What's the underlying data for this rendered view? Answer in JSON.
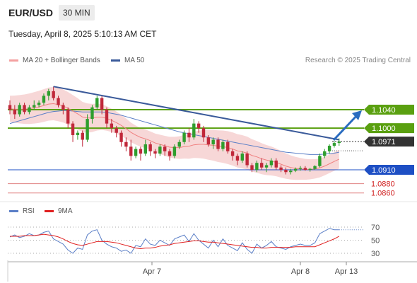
{
  "header": {
    "pair": "EUR/USD",
    "timeframe": "30 MIN"
  },
  "datetime": "Tuesday, April 8, 2025 5:10:13 AM CET",
  "legend": {
    "bollinger": "MA 20 + Bollinger Bands",
    "ma50": "MA 50",
    "research": "Research © 2025 Trading Central"
  },
  "rsi_legend": {
    "rsi": "RSI",
    "ma9": "9MA"
  },
  "colors": {
    "bull": "#2e9e2e",
    "bear": "#c0283a",
    "bands": "#f4c9c9",
    "ma20": "#f08080",
    "ma50": "#5b7fc7",
    "resistance": "#5aa010",
    "support": "#1e4fc4",
    "lower_levels": "#e08080",
    "trend": "#3a5a9a",
    "arrow": "#2a6cc0"
  },
  "chart_data": [
    {
      "type": "candlestick",
      "levels": [
        {
          "value": 1.104,
          "label": "1.1040",
          "kind": "resistance"
        },
        {
          "value": 1.1,
          "label": "1.1000",
          "kind": "resistance"
        },
        {
          "value": 1.0971,
          "label": "1.0971",
          "kind": "current"
        },
        {
          "value": 1.091,
          "label": "1.0910",
          "kind": "support"
        },
        {
          "value": 1.088,
          "label": "1.0880",
          "kind": "lower"
        },
        {
          "value": 1.086,
          "label": "1.0860",
          "kind": "lower"
        }
      ],
      "x_ticks": [
        "Apr 7",
        "Apr 8",
        "Apr 13"
      ],
      "ohlc": [
        [
          1.105,
          1.106,
          1.103,
          1.104
        ],
        [
          1.104,
          1.105,
          1.102,
          1.103
        ],
        [
          1.103,
          1.1055,
          1.1025,
          1.105
        ],
        [
          1.105,
          1.1055,
          1.103,
          1.1035
        ],
        [
          1.1035,
          1.105,
          1.103,
          1.1045
        ],
        [
          1.1045,
          1.106,
          1.104,
          1.105
        ],
        [
          1.105,
          1.106,
          1.1045,
          1.1055
        ],
        [
          1.1055,
          1.1075,
          1.105,
          1.107
        ],
        [
          1.107,
          1.1085,
          1.106,
          1.108
        ],
        [
          1.108,
          1.109,
          1.106,
          1.1065
        ],
        [
          1.1065,
          1.107,
          1.1045,
          1.105
        ],
        [
          1.105,
          1.1055,
          1.103,
          1.104
        ],
        [
          1.104,
          1.1045,
          1.1,
          1.101
        ],
        [
          1.101,
          1.1015,
          1.097,
          1.0985
        ],
        [
          1.0985,
          1.0995,
          1.0975,
          1.099
        ],
        [
          1.099,
          1.0995,
          1.096,
          1.0975
        ],
        [
          1.0975,
          1.103,
          1.097,
          1.102
        ],
        [
          1.102,
          1.105,
          1.101,
          1.1045
        ],
        [
          1.1045,
          1.107,
          1.104,
          1.1065
        ],
        [
          1.1065,
          1.107,
          1.103,
          1.104
        ],
        [
          1.104,
          1.1045,
          1.1,
          1.101
        ],
        [
          1.101,
          1.102,
          1.099,
          1.1
        ],
        [
          1.1,
          1.1005,
          1.098,
          1.099
        ],
        [
          1.099,
          1.0995,
          1.096,
          1.097
        ],
        [
          1.097,
          1.098,
          1.095,
          1.096
        ],
        [
          1.096,
          1.0975,
          1.093,
          1.094
        ],
        [
          1.094,
          1.096,
          1.0935,
          1.0955
        ],
        [
          1.0955,
          1.096,
          1.093,
          1.0945
        ],
        [
          1.0945,
          1.0975,
          1.094,
          1.0965
        ],
        [
          1.0965,
          1.097,
          1.094,
          1.095
        ],
        [
          1.095,
          1.0955,
          1.0935,
          1.0945
        ],
        [
          1.0945,
          1.0965,
          1.094,
          1.096
        ],
        [
          1.096,
          1.0965,
          1.094,
          1.095
        ],
        [
          1.095,
          1.0955,
          1.093,
          1.094
        ],
        [
          1.094,
          1.0965,
          1.0935,
          1.096
        ],
        [
          1.096,
          1.0975,
          1.0955,
          1.097
        ],
        [
          1.097,
          1.0995,
          1.0965,
          1.099
        ],
        [
          1.099,
          1.1,
          1.097,
          1.098
        ],
        [
          1.098,
          1.102,
          1.0975,
          1.101
        ],
        [
          1.101,
          1.1015,
          1.099,
          1.1
        ],
        [
          1.1,
          1.1005,
          1.097,
          1.098
        ],
        [
          1.098,
          1.0985,
          1.096,
          1.0965
        ],
        [
          1.0965,
          1.098,
          1.0955,
          1.0975
        ],
        [
          1.0975,
          1.098,
          1.095,
          1.0955
        ],
        [
          1.0955,
          1.0975,
          1.095,
          1.097
        ],
        [
          1.097,
          1.0975,
          1.0945,
          1.095
        ],
        [
          1.095,
          1.0955,
          1.093,
          1.094
        ],
        [
          1.094,
          1.0945,
          1.092,
          1.093
        ],
        [
          1.093,
          1.095,
          1.0925,
          1.0945
        ],
        [
          1.0945,
          1.095,
          1.0915,
          1.092
        ],
        [
          1.092,
          1.0925,
          1.0905,
          1.091
        ],
        [
          1.091,
          1.093,
          1.0905,
          1.0925
        ],
        [
          1.0925,
          1.0935,
          1.091,
          1.0915
        ],
        [
          1.0915,
          1.0925,
          1.0905,
          1.092
        ],
        [
          1.092,
          1.0935,
          1.0915,
          1.093
        ],
        [
          1.093,
          1.0935,
          1.091,
          1.0915
        ],
        [
          1.0915,
          1.092,
          1.0905,
          1.091
        ],
        [
          1.091,
          1.0915,
          1.09,
          1.0905
        ],
        [
          1.0905,
          1.0912,
          1.09,
          1.0908
        ],
        [
          1.0908,
          1.0915,
          1.0905,
          1.0912
        ],
        [
          1.0912,
          1.0918,
          1.0908,
          1.0914
        ],
        [
          1.0914,
          1.0918,
          1.0908,
          1.091
        ],
        [
          1.091,
          1.0914,
          1.0906,
          1.0912
        ],
        [
          1.0912,
          1.092,
          1.091,
          1.0918
        ],
        [
          1.0918,
          1.0945,
          1.0915,
          1.094
        ],
        [
          1.094,
          1.0955,
          1.0935,
          1.095
        ],
        [
          1.095,
          1.0965,
          1.0945,
          1.0962
        ],
        [
          1.0962,
          1.0972,
          1.0958,
          1.0968
        ],
        [
          1.0968,
          1.0978,
          1.0962,
          1.0971
        ]
      ],
      "ma20": [
        1.1042,
        1.1041,
        1.1041,
        1.1041,
        1.1042,
        1.1044,
        1.1046,
        1.1049,
        1.1052,
        1.1053,
        1.1051,
        1.1048,
        1.1043,
        1.1037,
        1.1031,
        1.1024,
        1.1022,
        1.1022,
        1.1024,
        1.1024,
        1.1021,
        1.1017,
        1.1012,
        1.1006,
        1.0999,
        1.0991,
        1.0985,
        1.098,
        1.0977,
        1.0973,
        1.0968,
        1.0965,
        1.0962,
        1.0959,
        1.0958,
        1.0958,
        1.096,
        1.0961,
        1.0964,
        1.0965,
        1.0965,
        1.0964,
        1.0963,
        1.0961,
        1.096,
        1.0958,
        1.0955,
        1.0951,
        1.0949,
        1.0946,
        1.0941,
        1.0938,
        1.0934,
        1.0931,
        1.0929,
        1.0926,
        1.0922,
        1.0918,
        1.0915,
        1.0913,
        1.0912,
        1.0911,
        1.0911,
        1.0912,
        1.0914,
        1.0918,
        1.0923,
        1.0928,
        1.0933
      ],
      "ma50": [
        1.101,
        1.1013,
        1.1016,
        1.1019,
        1.1022,
        1.1025,
        1.1028,
        1.1031,
        1.1034,
        1.1036,
        1.1037,
        1.1038,
        1.1038,
        1.1037,
        1.1036,
        1.1035,
        1.1035,
        1.1035,
        1.1035,
        1.1035,
        1.1034,
        1.1032,
        1.103,
        1.1028,
        1.1025,
        1.1022,
        1.1019,
        1.1016,
        1.1013,
        1.101,
        1.1007,
        1.1004,
        1.1001,
        1.0998,
        1.0995,
        1.0992,
        1.099,
        1.0988,
        1.0986,
        1.0984,
        1.0982,
        1.098,
        1.0978,
        1.0976,
        1.0974,
        1.0972,
        1.097,
        1.0968,
        1.0966,
        1.0964,
        1.0962,
        1.096,
        1.0958,
        1.0956,
        1.0954,
        1.0952,
        1.095,
        1.0948,
        1.0947,
        1.0946,
        1.0945,
        1.0944,
        1.0943,
        1.0943,
        1.0943,
        1.0944,
        1.0945,
        1.0946,
        1.0948
      ]
    },
    {
      "type": "line",
      "levels": [
        70,
        50,
        30
      ],
      "rsi": [
        55,
        58,
        54,
        56,
        60,
        57,
        58,
        62,
        64,
        52,
        48,
        44,
        35,
        30,
        38,
        36,
        58,
        64,
        66,
        50,
        44,
        40,
        38,
        33,
        35,
        30,
        42,
        40,
        52,
        44,
        42,
        50,
        46,
        42,
        52,
        55,
        58,
        48,
        60,
        50,
        44,
        38,
        50,
        40,
        52,
        42,
        38,
        34,
        46,
        36,
        30,
        44,
        38,
        42,
        48,
        40,
        38,
        36,
        40,
        42,
        44,
        42,
        42,
        46,
        60,
        64,
        68,
        66,
        66
      ],
      "ma9": [
        56,
        56,
        56,
        57,
        57,
        57,
        58,
        59,
        58,
        57,
        55,
        52,
        48,
        45,
        43,
        42,
        44,
        46,
        48,
        48,
        48,
        47,
        46,
        44,
        42,
        40,
        38,
        37,
        38,
        38,
        39,
        41,
        42,
        43,
        45,
        46,
        47,
        48,
        49,
        49,
        48,
        47,
        47,
        46,
        45,
        44,
        43,
        42,
        41,
        40,
        39,
        39,
        38,
        38,
        39,
        39,
        39,
        39,
        39,
        40,
        40,
        40,
        40,
        40,
        43,
        46,
        49,
        52,
        56
      ]
    }
  ]
}
